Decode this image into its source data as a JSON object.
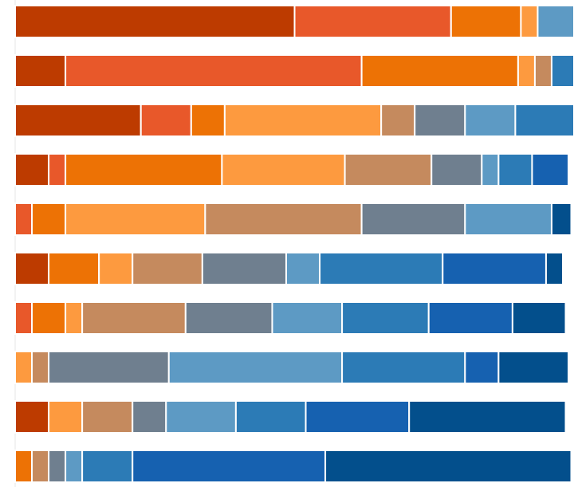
{
  "chart_data": {
    "type": "stacked_barh",
    "categories": [
      null,
      null,
      null,
      null,
      null,
      null,
      null,
      null,
      null,
      null
    ],
    "xlim": [
      0,
      100
    ],
    "series": [
      {
        "color": "#bd3b00",
        "values": [
          50,
          9,
          22.5,
          6,
          0,
          6,
          0,
          0,
          6,
          0
        ]
      },
      {
        "color": "#e8582a",
        "values": [
          28,
          53,
          9,
          3,
          3,
          0,
          3,
          0,
          0,
          0
        ]
      },
      {
        "color": "#ed7205",
        "values": [
          12.5,
          28,
          6,
          28,
          6,
          9,
          6,
          0,
          0,
          3
        ]
      },
      {
        "color": "#fd9a3f",
        "values": [
          3,
          3,
          28,
          22,
          25,
          6,
          3,
          3,
          6,
          0
        ]
      },
      {
        "color": "#c58a5e",
        "values": [
          0,
          3,
          6,
          15.5,
          28,
          12.5,
          18.5,
          3,
          9,
          3
        ]
      },
      {
        "color": "#6f7f8f",
        "values": [
          0,
          0,
          9,
          9,
          18.5,
          15,
          15.5,
          21.5,
          6,
          3
        ]
      },
      {
        "color": "#5d9ac4",
        "values": [
          6.5,
          0,
          9,
          3,
          15.5,
          6,
          12.5,
          31,
          12.5,
          3
        ]
      },
      {
        "color": "#2c7bb6",
        "values": [
          0,
          4,
          10.5,
          6,
          0,
          22,
          15.5,
          22,
          12.5,
          9
        ]
      },
      {
        "color": "#1661b0",
        "values": [
          0,
          0,
          0,
          6.5,
          0,
          18.5,
          15,
          6,
          18.5,
          34.5
        ]
      },
      {
        "color": "#034f8c",
        "values": [
          0,
          0,
          0,
          0,
          3.5,
          3,
          9.5,
          12.5,
          28,
          44
        ]
      }
    ]
  }
}
